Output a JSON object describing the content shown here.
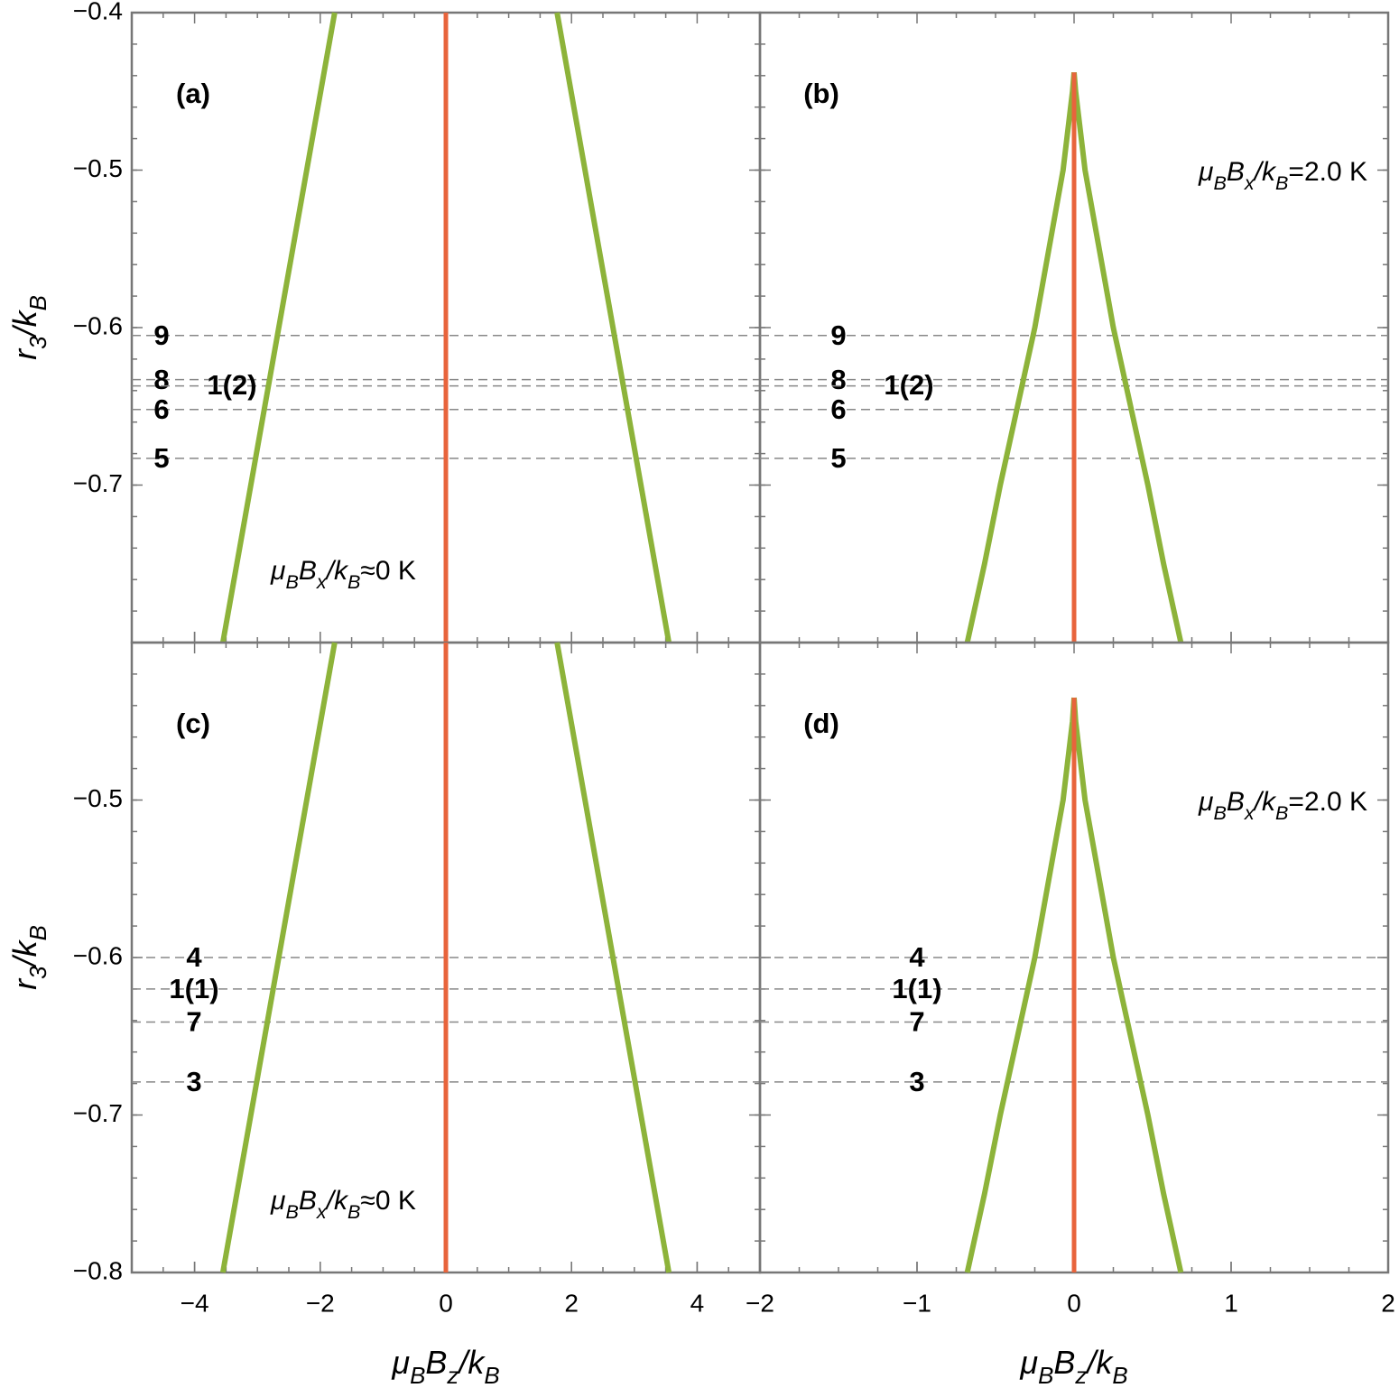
{
  "chart_data": [
    {
      "type": "line",
      "panel_label": "(a)",
      "note": [
        "μ",
        "B",
        "B",
        "x",
        "/k",
        "B",
        "≈0 K"
      ],
      "ylabel": [
        "r",
        "3",
        "/k",
        "B"
      ],
      "xlim": [
        -5,
        5
      ],
      "ylim": [
        -0.8,
        -0.4
      ],
      "yticks": [
        {
          "value": -0.4,
          "label": "−0.4"
        },
        {
          "value": -0.5,
          "label": "−0.5"
        },
        {
          "value": -0.6,
          "label": "−0.6"
        },
        {
          "value": -0.7,
          "label": "−0.7"
        }
      ],
      "hlines": [
        {
          "value": -0.605,
          "label": "9"
        },
        {
          "value": -0.633,
          "label": "8"
        },
        {
          "value": -0.637,
          "label": "1(2)"
        },
        {
          "value": -0.652,
          "label": "6"
        },
        {
          "value": -0.683,
          "label": "5"
        }
      ],
      "series": [
        {
          "color": "#8db33a",
          "x": [
            -3.55,
            -1.77
          ],
          "values": [
            -0.8,
            -0.4
          ]
        },
        {
          "color": "#8db33a",
          "x": [
            1.77,
            3.55
          ],
          "values": [
            -0.4,
            -0.8
          ]
        },
        {
          "color": "#e8643c",
          "x": [
            0,
            0
          ],
          "values": [
            -0.4,
            -0.8
          ]
        }
      ]
    },
    {
      "type": "line",
      "panel_label": "(b)",
      "note": [
        "μ",
        "B",
        "B",
        "x",
        "/k",
        "B",
        "=2.0 K"
      ],
      "xlim": [
        -2,
        2
      ],
      "ylim": [
        -0.8,
        -0.4
      ],
      "hlines": [
        {
          "value": -0.605,
          "label": "9"
        },
        {
          "value": -0.633,
          "label": "8"
        },
        {
          "value": -0.637,
          "label": "1(2)"
        },
        {
          "value": -0.652,
          "label": "6"
        },
        {
          "value": -0.683,
          "label": "5"
        }
      ],
      "series": [
        {
          "color": "#8db33a",
          "x": [
            -0.68,
            -0.57,
            -0.47,
            -0.36,
            -0.25,
            -0.16,
            -0.07,
            -0.01,
            0
          ],
          "values": [
            -0.8,
            -0.75,
            -0.7,
            -0.65,
            -0.6,
            -0.55,
            -0.5,
            -0.45,
            -0.438
          ]
        },
        {
          "color": "#8db33a",
          "x": [
            0,
            0.01,
            0.07,
            0.16,
            0.25,
            0.36,
            0.47,
            0.57,
            0.68
          ],
          "values": [
            -0.438,
            -0.45,
            -0.5,
            -0.55,
            -0.6,
            -0.65,
            -0.7,
            -0.75,
            -0.8
          ]
        },
        {
          "color": "#e8643c",
          "x": [
            0,
            0
          ],
          "values": [
            -0.438,
            -0.8
          ]
        }
      ]
    },
    {
      "type": "line",
      "panel_label": "(c)",
      "note": [
        "μ",
        "B",
        "B",
        "x",
        "/k",
        "B",
        "≈0 K"
      ],
      "ylabel": [
        "r",
        "3",
        "/k",
        "B"
      ],
      "xlabel": [
        "μ",
        "B",
        "B",
        "z",
        "/k",
        "B"
      ],
      "xlim": [
        -5,
        5
      ],
      "ylim": [
        -0.8,
        -0.4
      ],
      "xticks": [
        {
          "value": -4,
          "label": "−4"
        },
        {
          "value": -2,
          "label": "−2"
        },
        0,
        2,
        4
      ],
      "yticks": [
        {
          "value": -0.5,
          "label": "−0.5"
        },
        {
          "value": -0.6,
          "label": "−0.6"
        },
        {
          "value": -0.7,
          "label": "−0.7"
        },
        {
          "value": -0.8,
          "label": "−0.8"
        }
      ],
      "hlines": [
        {
          "value": -0.6,
          "label": "4"
        },
        {
          "value": -0.62,
          "label": "1(1)"
        },
        {
          "value": -0.641,
          "label": "7"
        },
        {
          "value": -0.679,
          "label": "3"
        }
      ],
      "series": [
        {
          "color": "#8db33a",
          "x": [
            -3.55,
            -1.77
          ],
          "values": [
            -0.8,
            -0.4
          ]
        },
        {
          "color": "#8db33a",
          "x": [
            1.77,
            3.55
          ],
          "values": [
            -0.4,
            -0.8
          ]
        },
        {
          "color": "#e8643c",
          "x": [
            0,
            0
          ],
          "values": [
            -0.4,
            -0.8
          ]
        }
      ]
    },
    {
      "type": "line",
      "panel_label": "(d)",
      "note": [
        "μ",
        "B",
        "B",
        "x",
        "/k",
        "B",
        "=2.0 K"
      ],
      "xlabel": [
        "μ",
        "B",
        "B",
        "z",
        "/k",
        "B"
      ],
      "xlim": [
        -2,
        2
      ],
      "ylim": [
        -0.8,
        -0.4
      ],
      "xticks": [
        {
          "value": -2,
          "label": "−2"
        },
        {
          "value": -1,
          "label": "−1"
        },
        0,
        1,
        2
      ],
      "hlines": [
        {
          "value": -0.6,
          "label": "4"
        },
        {
          "value": -0.62,
          "label": "1(1)"
        },
        {
          "value": -0.641,
          "label": "7"
        },
        {
          "value": -0.679,
          "label": "3"
        }
      ],
      "series": [
        {
          "color": "#8db33a",
          "x": [
            -0.68,
            -0.57,
            -0.47,
            -0.36,
            -0.25,
            -0.16,
            -0.07,
            -0.01,
            0
          ],
          "values": [
            -0.8,
            -0.75,
            -0.7,
            -0.65,
            -0.6,
            -0.55,
            -0.5,
            -0.45,
            -0.435
          ]
        },
        {
          "color": "#8db33a",
          "x": [
            0,
            0.01,
            0.07,
            0.16,
            0.25,
            0.36,
            0.47,
            0.57,
            0.68
          ],
          "values": [
            -0.435,
            -0.45,
            -0.5,
            -0.55,
            -0.6,
            -0.65,
            -0.7,
            -0.75,
            -0.8
          ]
        },
        {
          "color": "#e8643c",
          "x": [
            0,
            0
          ],
          "values": [
            -0.435,
            -0.8
          ]
        }
      ]
    }
  ]
}
